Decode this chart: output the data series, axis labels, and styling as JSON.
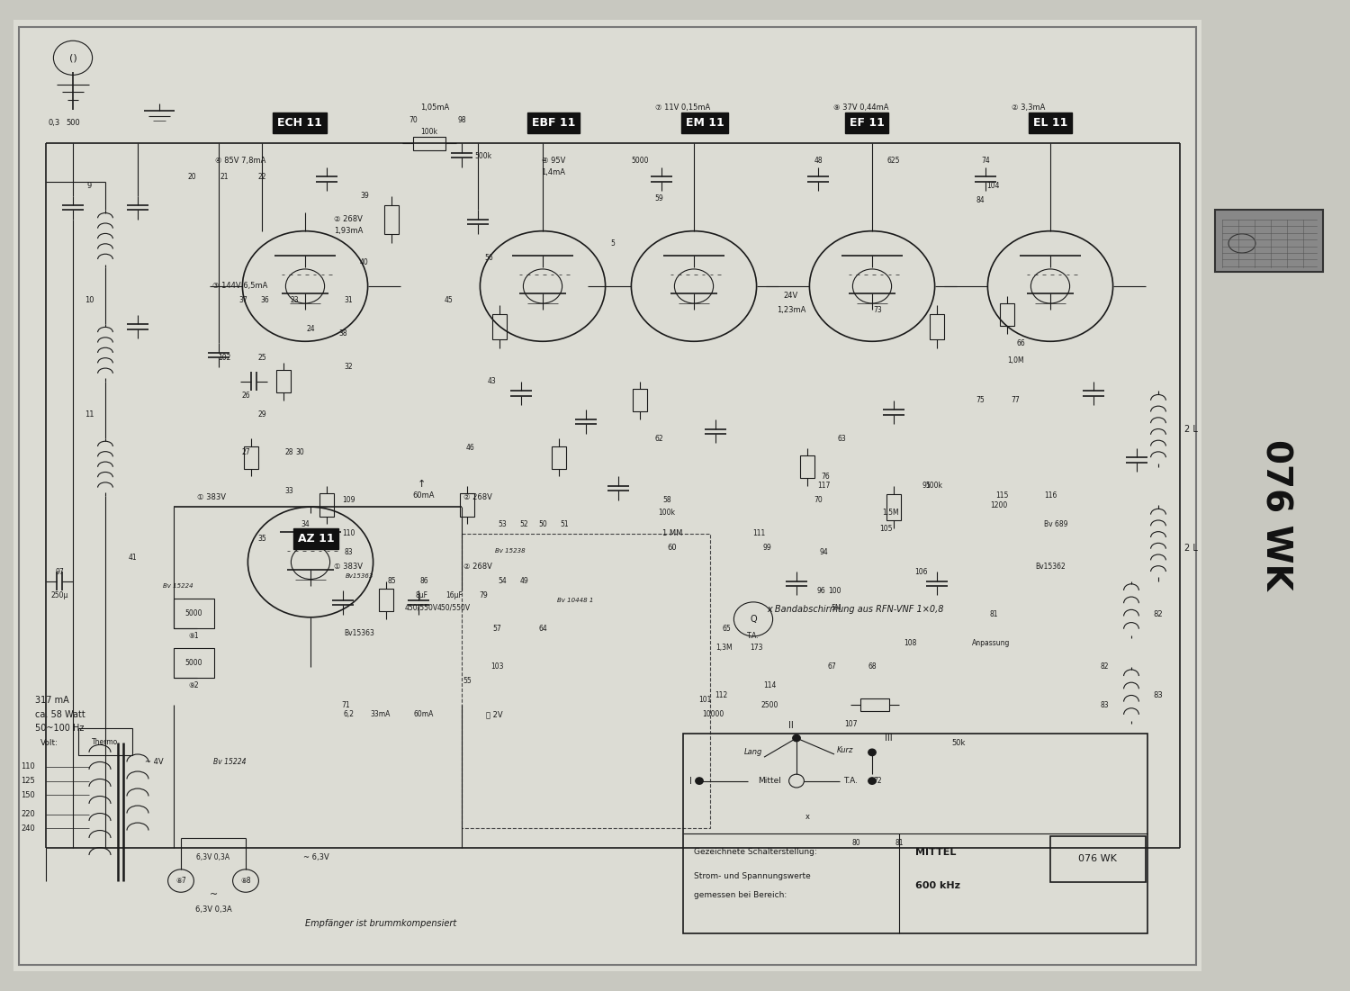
{
  "title": "076 WK",
  "bg_color": "#c8c8c0",
  "paper_color": "#dcdcd4",
  "line_color": "#1a1a1a",
  "label_bg": "#111111",
  "label_fg": "#ffffff",
  "figsize": [
    15.0,
    11.01
  ],
  "dpi": 100,
  "tube_labels": [
    [
      "ECH 11",
      265,
      108
    ],
    [
      "EBF 11",
      500,
      108
    ],
    [
      "EM 11",
      640,
      108
    ],
    [
      "EF 11",
      790,
      108
    ],
    [
      "EL 11",
      960,
      108
    ],
    [
      "AZ 11",
      280,
      545
    ]
  ],
  "bottom_note": "Empfänger ist brummkompensiert",
  "band_note": "x Bandabschirmung aus RFN-VNF 1×0,8",
  "switch_label1": "Gezeichnete Schalterstellung:",
  "switch_label2": "Strom- und Spannungswerte",
  "switch_label3": "gemessen bei Bereich:",
  "switch_val1": "MITTEL",
  "switch_val2": "600 kHz",
  "model_text": "076 WK"
}
